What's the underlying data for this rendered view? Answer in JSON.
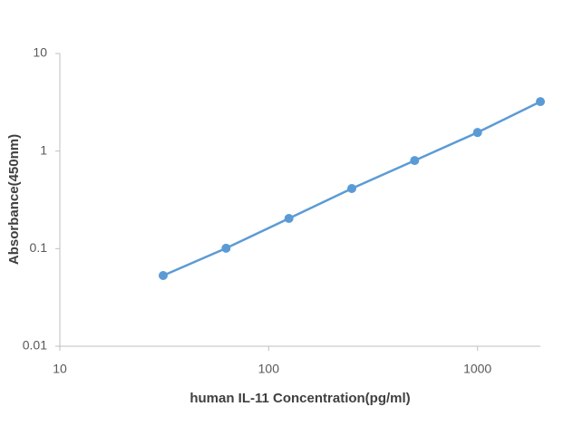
{
  "chart_data": {
    "type": "line",
    "x_label": "human IL-11 Concentration(pg/ml)",
    "y_label": "Absorbance(450nm)",
    "x": [
      31.25,
      62.5,
      125,
      250,
      500,
      1000,
      2000
    ],
    "series": [
      {
        "color": "#5b9bd5",
        "values": [
          0.053,
          0.101,
          0.204,
          0.413,
          0.8,
          1.55,
          3.21
        ]
      }
    ],
    "xscale": "log",
    "yscale": "log",
    "xlim": [
      10,
      2000
    ],
    "ylim": [
      0.01,
      10
    ],
    "xticks": [
      10,
      100,
      1000
    ],
    "yticks": [
      0.01,
      0.1,
      1,
      10
    ],
    "grid": false
  }
}
